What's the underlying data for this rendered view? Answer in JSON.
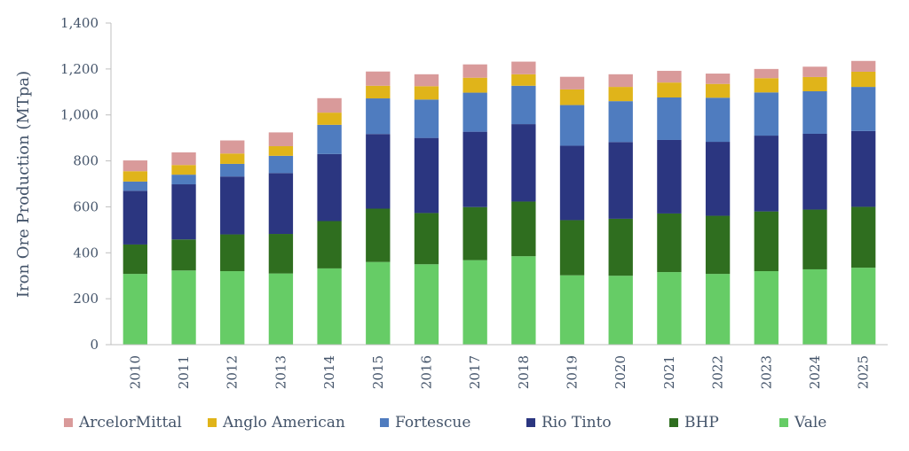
{
  "chart_data": {
    "type": "bar",
    "stacked": true,
    "title": "",
    "xlabel": "",
    "ylabel": "Iron Ore Production (MTpa)",
    "ylim": [
      0,
      1400
    ],
    "yticks": [
      0,
      200,
      400,
      600,
      800,
      1000,
      1200,
      1400
    ],
    "ytick_labels": [
      "0",
      "200",
      "400",
      "600",
      "800",
      "1,000",
      "1,200",
      "1,400"
    ],
    "grid": false,
    "legend_position": "bottom",
    "categories": [
      "2010",
      "2011",
      "2012",
      "2013",
      "2014",
      "2015",
      "2016",
      "2017",
      "2018",
      "2019",
      "2020",
      "2021",
      "2022",
      "2023",
      "2024",
      "2025"
    ],
    "series": [
      {
        "name": "Vale",
        "color": "#66cc66",
        "values": [
          308,
          323,
          320,
          310,
          332,
          360,
          350,
          368,
          385,
          302,
          300,
          316,
          308,
          320,
          328,
          335
        ]
      },
      {
        "name": "BHP",
        "color": "#2f6e1f",
        "values": [
          128,
          135,
          160,
          172,
          206,
          232,
          223,
          231,
          238,
          240,
          248,
          255,
          253,
          260,
          260,
          265
        ]
      },
      {
        "name": "Rio Tinto",
        "color": "#2b3680",
        "values": [
          234,
          240,
          252,
          265,
          292,
          325,
          327,
          328,
          337,
          324,
          334,
          320,
          322,
          330,
          330,
          330
        ]
      },
      {
        "name": "Fortescue",
        "color": "#4f7cbf",
        "values": [
          40,
          42,
          55,
          75,
          127,
          155,
          167,
          170,
          167,
          177,
          178,
          185,
          192,
          188,
          185,
          192
        ]
      },
      {
        "name": "Anglo American",
        "color": "#e0b41a",
        "values": [
          45,
          42,
          45,
          42,
          53,
          55,
          58,
          65,
          50,
          68,
          62,
          65,
          60,
          62,
          62,
          66
        ]
      },
      {
        "name": "ArcelorMittal",
        "color": "#d99a9a",
        "values": [
          47,
          55,
          57,
          60,
          63,
          62,
          52,
          58,
          55,
          55,
          55,
          51,
          45,
          40,
          45,
          47
        ]
      }
    ]
  },
  "legend_order": [
    "ArcelorMittal",
    "Anglo American",
    "Fortescue",
    "Rio Tinto",
    "BHP",
    "Vale"
  ]
}
